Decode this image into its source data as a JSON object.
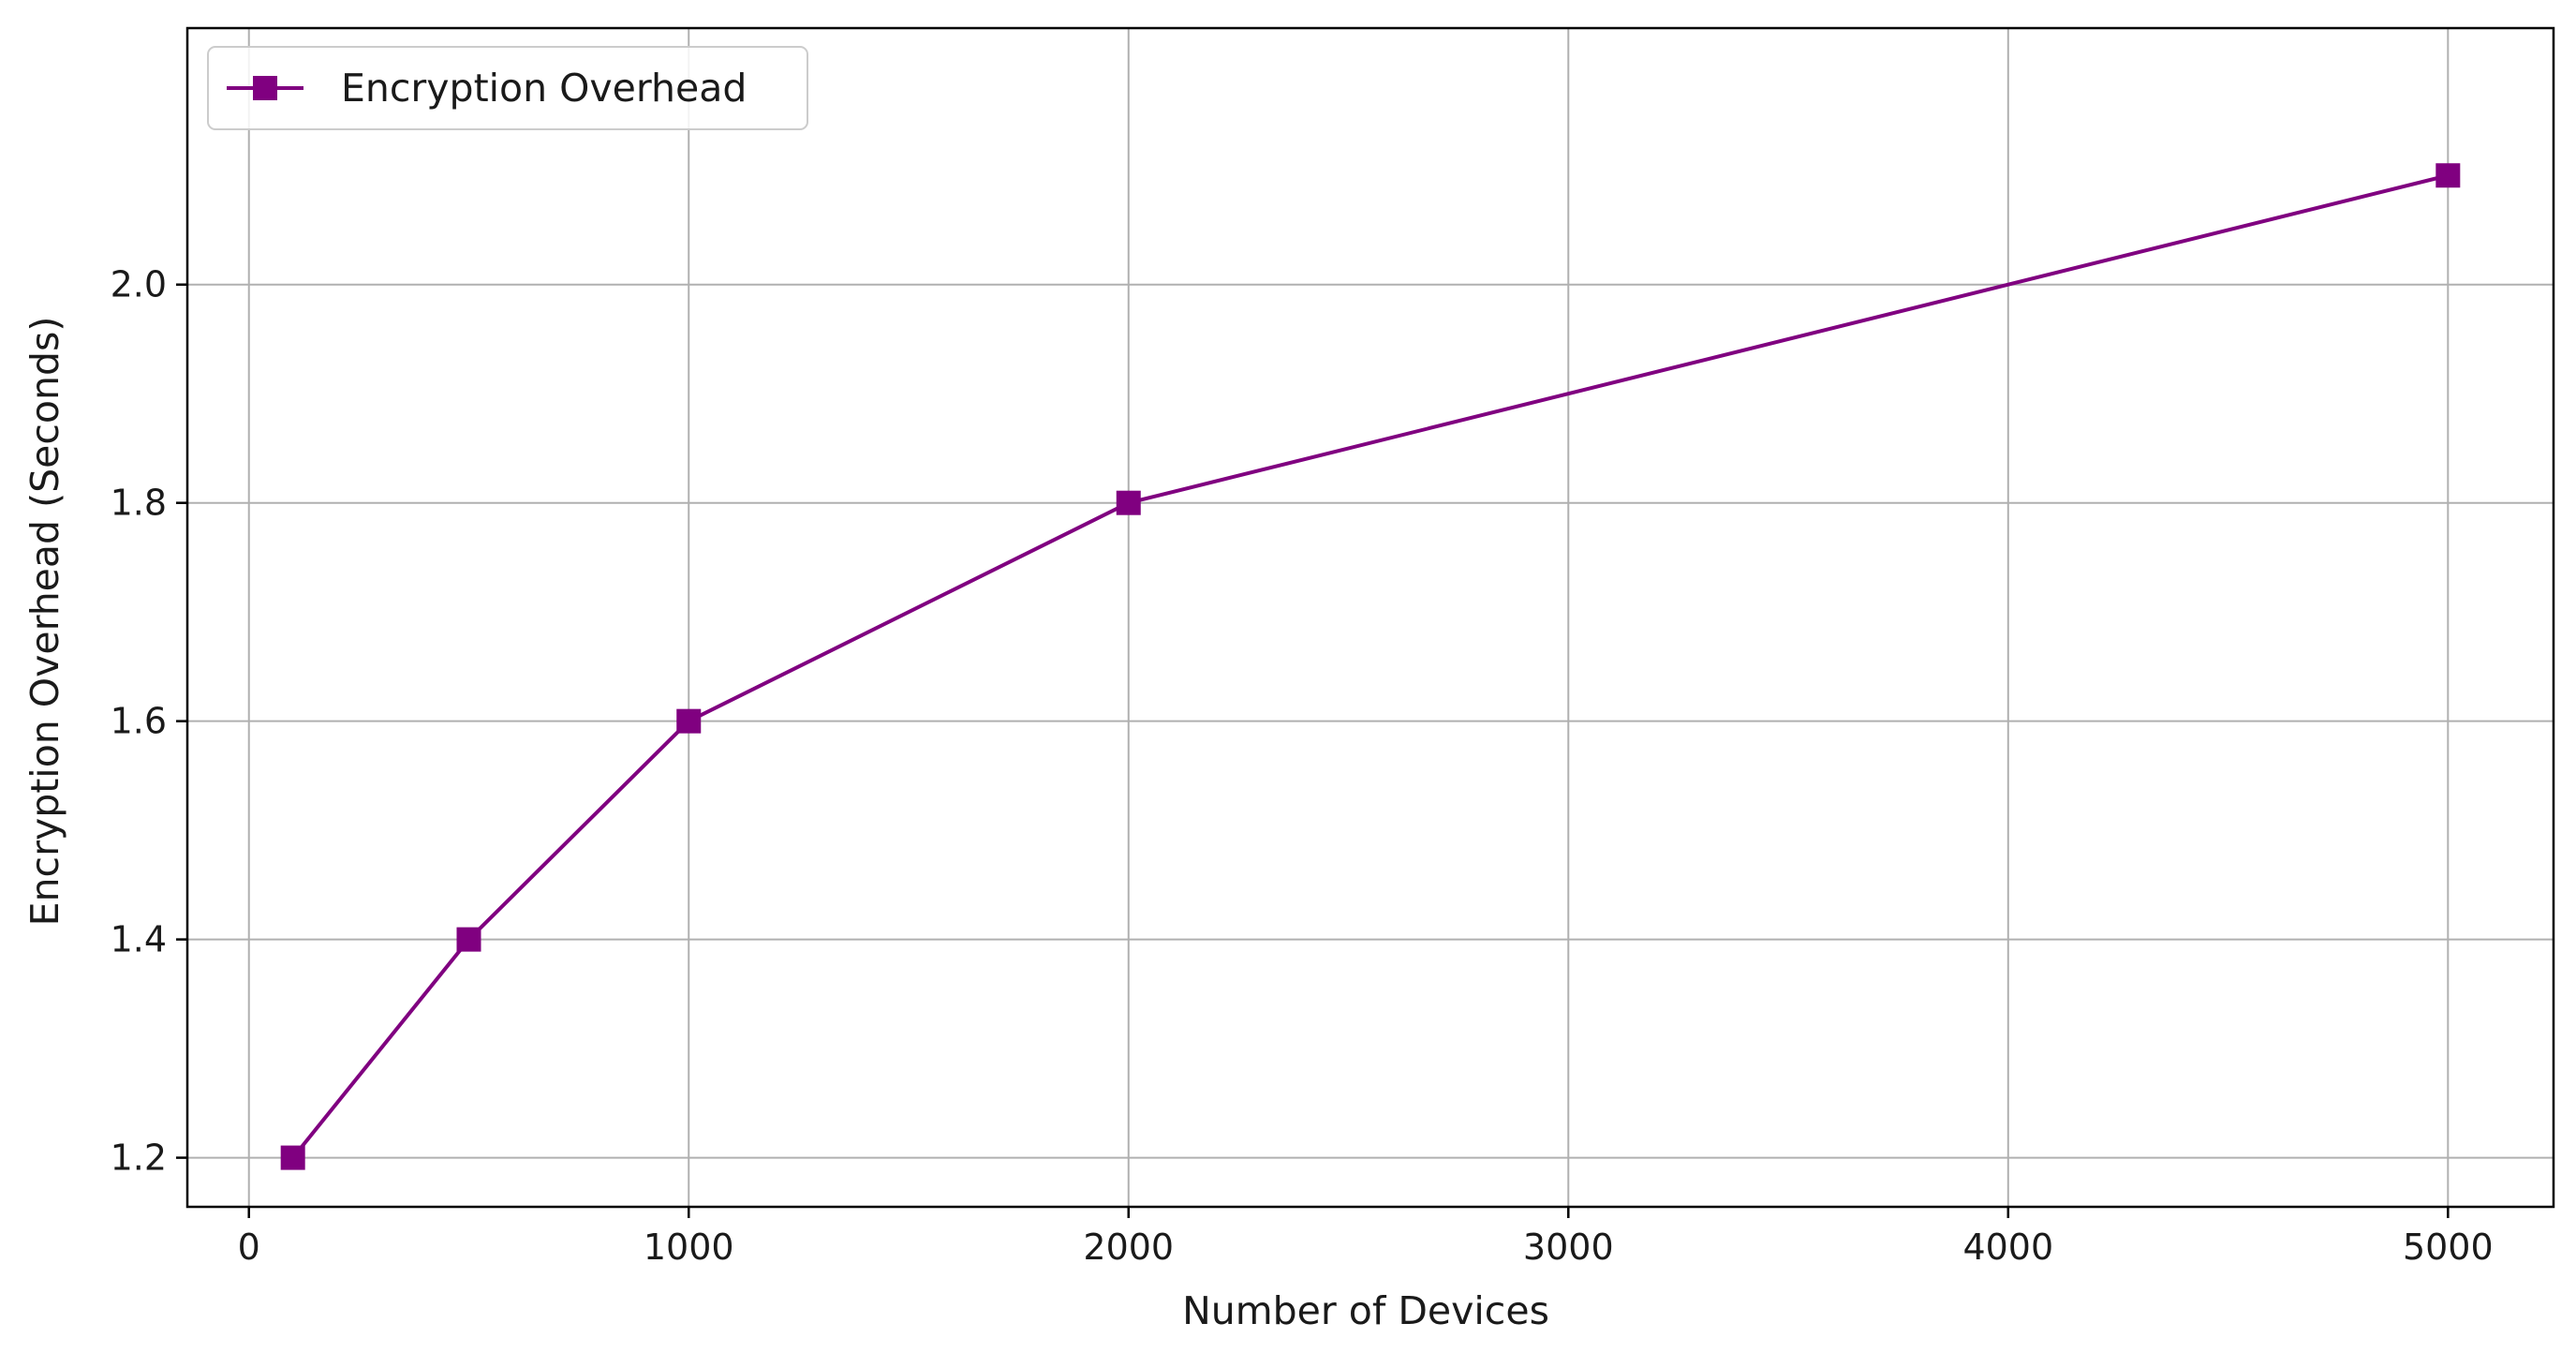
{
  "chart_data": {
    "type": "line",
    "title": "",
    "xlabel": "Number of Devices",
    "ylabel": "Encryption Overhead (Seconds)",
    "xlim": [
      -140,
      5240
    ],
    "ylim": [
      1.155,
      2.235
    ],
    "xticks": [
      0,
      1000,
      2000,
      3000,
      4000,
      5000
    ],
    "xtick_labels": [
      "0",
      "1000",
      "2000",
      "3000",
      "4000",
      "5000"
    ],
    "yticks": [
      1.2,
      1.4,
      1.6,
      1.8,
      2.0
    ],
    "ytick_labels": [
      "1.2",
      "1.4",
      "1.6",
      "1.8",
      "2.0"
    ],
    "grid": true,
    "legend_position": "top-left",
    "series": [
      {
        "name": "Encryption Overhead",
        "color": "#800080",
        "marker": "square",
        "x": [
          100,
          500,
          1000,
          2000,
          5000
        ],
        "y": [
          1.2,
          1.4,
          1.6,
          1.8,
          2.1
        ]
      }
    ]
  }
}
